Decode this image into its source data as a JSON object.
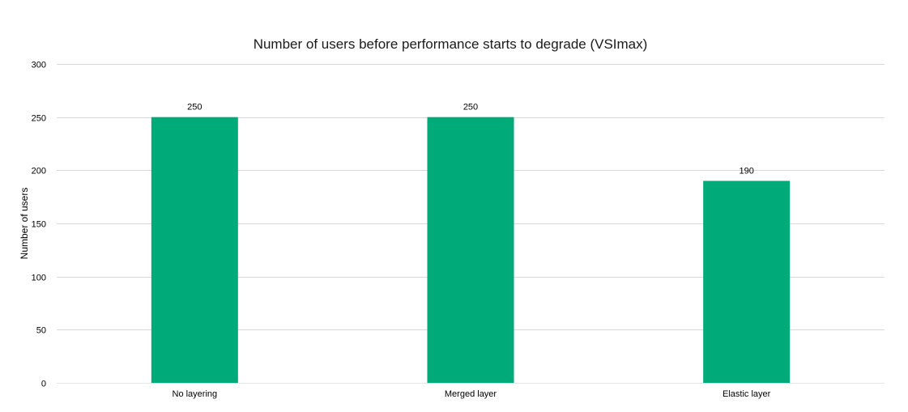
{
  "chart_data": {
    "type": "bar",
    "title": "Number of users before performance starts to degrade (VSImax)",
    "xlabel": "",
    "ylabel": "Number of users",
    "categories": [
      "No layering",
      "Merged layer",
      "Elastic layer"
    ],
    "values": [
      250,
      250,
      190
    ],
    "data_labels": [
      "250",
      "250",
      "190"
    ],
    "ylim": [
      0,
      300
    ],
    "yticks": [
      0,
      50,
      100,
      150,
      200,
      250,
      300
    ],
    "grid": true,
    "legend": "none",
    "colors": {
      "bar": "#00AA79",
      "grid": "#D9D9D9",
      "baseline": "#D6EEF2"
    }
  }
}
